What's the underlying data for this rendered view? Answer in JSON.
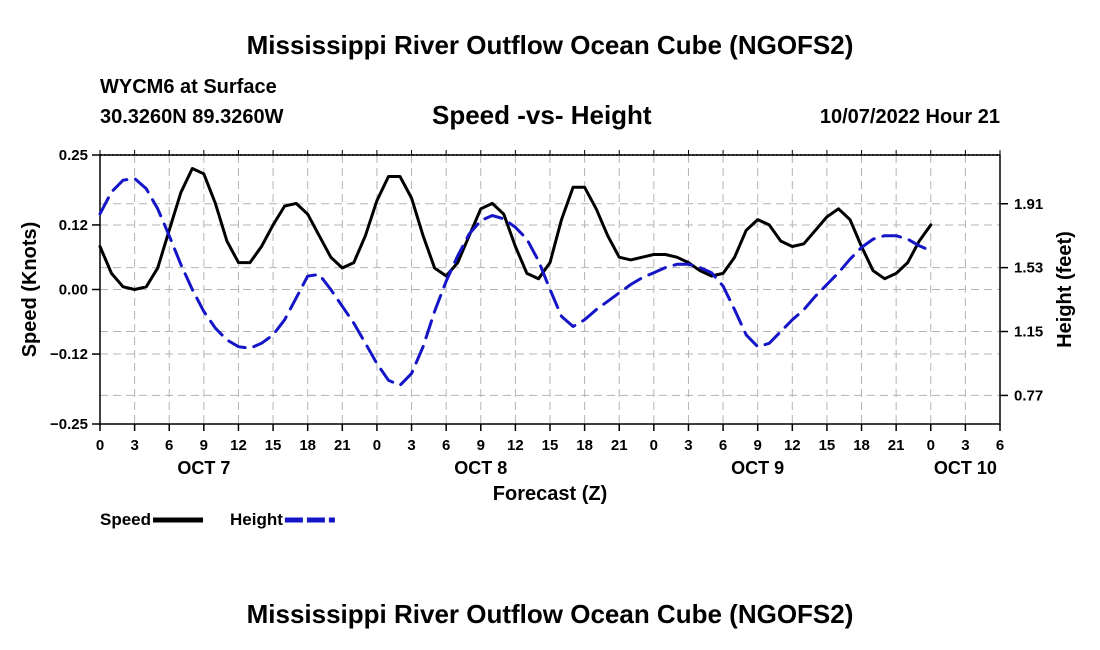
{
  "header": {
    "title": "Mississippi River Outflow Ocean Cube (NGOFS2)",
    "station": "WYCM6 at Surface",
    "coordinates": "30.3260N  89.3260W",
    "subtitle": "Speed -vs- Height",
    "datetime": "10/07/2022 Hour 21"
  },
  "footer": {
    "title": "Mississippi River Outflow Ocean Cube (NGOFS2)"
  },
  "chart_data": {
    "type": "line",
    "title": "Speed -vs- Height",
    "xlabel": "Forecast (Z)",
    "ylabel_left": "Speed (Knots)",
    "ylabel_right": "Height (feet)",
    "x_range_hours": [
      0,
      78
    ],
    "x_tick_labels": [
      "0",
      "3",
      "6",
      "9",
      "12",
      "15",
      "18",
      "21",
      "0",
      "3",
      "6",
      "9",
      "12",
      "15",
      "18",
      "21",
      "0",
      "3",
      "6",
      "9",
      "12",
      "15",
      "18",
      "21",
      "0",
      "3",
      "6"
    ],
    "date_labels": [
      {
        "label": "OCT 7",
        "hour": 9
      },
      {
        "label": "OCT 8",
        "hour": 33
      },
      {
        "label": "OCT 9",
        "hour": 57
      },
      {
        "label": "OCT 10",
        "hour": 75
      }
    ],
    "left_axis": {
      "ylim": [
        -0.25,
        0.25
      ],
      "ticks": [
        0.25,
        0.12,
        0.0,
        -0.12,
        -0.25
      ],
      "tick_labels": [
        "0.25",
        "0.12",
        "0.00",
        "−0.12",
        "−0.25"
      ]
    },
    "right_axis": {
      "ylim": [
        0.6,
        2.2
      ],
      "ticks": [
        1.91,
        1.53,
        1.15,
        0.77
      ],
      "tick_labels": [
        "1.91",
        "1.53",
        "1.15",
        "0.77"
      ]
    },
    "grid": true,
    "series": [
      {
        "name": "Speed",
        "axis": "left",
        "color": "#000000",
        "dash": "solid",
        "points": [
          [
            0,
            0.08
          ],
          [
            1,
            0.03
          ],
          [
            2,
            0.005
          ],
          [
            3,
            0
          ],
          [
            4,
            0.005
          ],
          [
            5,
            0.04
          ],
          [
            6,
            0.11
          ],
          [
            7,
            0.18
          ],
          [
            8,
            0.225
          ],
          [
            9,
            0.215
          ],
          [
            10,
            0.16
          ],
          [
            11,
            0.09
          ],
          [
            12,
            0.05
          ],
          [
            13,
            0.05
          ],
          [
            14,
            0.08
          ],
          [
            15,
            0.12
          ],
          [
            16,
            0.155
          ],
          [
            17,
            0.16
          ],
          [
            18,
            0.14
          ],
          [
            19,
            0.1
          ],
          [
            20,
            0.06
          ],
          [
            21,
            0.04
          ],
          [
            22,
            0.05
          ],
          [
            23,
            0.1
          ],
          [
            24,
            0.165
          ],
          [
            25,
            0.21
          ],
          [
            26,
            0.21
          ],
          [
            27,
            0.17
          ],
          [
            28,
            0.1
          ],
          [
            29,
            0.04
          ],
          [
            30,
            0.025
          ],
          [
            31,
            0.05
          ],
          [
            32,
            0.1
          ],
          [
            33,
            0.15
          ],
          [
            34,
            0.16
          ],
          [
            35,
            0.14
          ],
          [
            36,
            0.08
          ],
          [
            37,
            0.03
          ],
          [
            38,
            0.02
          ],
          [
            39,
            0.05
          ],
          [
            40,
            0.13
          ],
          [
            41,
            0.19
          ],
          [
            42,
            0.19
          ],
          [
            43,
            0.15
          ],
          [
            44,
            0.1
          ],
          [
            45,
            0.06
          ],
          [
            46,
            0.055
          ],
          [
            47,
            0.06
          ],
          [
            48,
            0.065
          ],
          [
            49,
            0.065
          ],
          [
            50,
            0.06
          ],
          [
            51,
            0.05
          ],
          [
            52,
            0.035
          ],
          [
            53,
            0.025
          ],
          [
            54,
            0.03
          ],
          [
            55,
            0.06
          ],
          [
            56,
            0.11
          ],
          [
            57,
            0.13
          ],
          [
            58,
            0.12
          ],
          [
            59,
            0.09
          ],
          [
            60,
            0.08
          ],
          [
            61,
            0.085
          ],
          [
            62,
            0.11
          ],
          [
            63,
            0.135
          ],
          [
            64,
            0.15
          ],
          [
            65,
            0.13
          ],
          [
            66,
            0.08
          ],
          [
            67,
            0.035
          ],
          [
            68,
            0.02
          ],
          [
            69,
            0.03
          ],
          [
            70,
            0.05
          ],
          [
            71,
            0.09
          ],
          [
            72,
            0.12
          ]
        ]
      },
      {
        "name": "Height",
        "axis": "right",
        "color": "#1515c8",
        "dash": "dashed",
        "points": [
          [
            0,
            1.85
          ],
          [
            1,
            1.98
          ],
          [
            2,
            2.05
          ],
          [
            3,
            2.06
          ],
          [
            4,
            2.0
          ],
          [
            5,
            1.88
          ],
          [
            6,
            1.72
          ],
          [
            7,
            1.55
          ],
          [
            8,
            1.4
          ],
          [
            9,
            1.27
          ],
          [
            10,
            1.17
          ],
          [
            11,
            1.1
          ],
          [
            12,
            1.06
          ],
          [
            13,
            1.05
          ],
          [
            14,
            1.08
          ],
          [
            15,
            1.13
          ],
          [
            16,
            1.22
          ],
          [
            17,
            1.35
          ],
          [
            18,
            1.48
          ],
          [
            19,
            1.49
          ],
          [
            20,
            1.4
          ],
          [
            21,
            1.3
          ],
          [
            22,
            1.2
          ],
          [
            23,
            1.08
          ],
          [
            24,
            0.96
          ],
          [
            25,
            0.86
          ],
          [
            26,
            0.83
          ],
          [
            27,
            0.9
          ],
          [
            28,
            1.06
          ],
          [
            29,
            1.27
          ],
          [
            30,
            1.45
          ],
          [
            31,
            1.6
          ],
          [
            32,
            1.73
          ],
          [
            33,
            1.81
          ],
          [
            34,
            1.84
          ],
          [
            35,
            1.82
          ],
          [
            36,
            1.77
          ],
          [
            37,
            1.7
          ],
          [
            38,
            1.57
          ],
          [
            39,
            1.4
          ],
          [
            40,
            1.24
          ],
          [
            41,
            1.18
          ],
          [
            42,
            1.22
          ],
          [
            43,
            1.28
          ],
          [
            44,
            1.33
          ],
          [
            45,
            1.38
          ],
          [
            46,
            1.43
          ],
          [
            47,
            1.47
          ],
          [
            48,
            1.5
          ],
          [
            49,
            1.53
          ],
          [
            50,
            1.55
          ],
          [
            51,
            1.55
          ],
          [
            52,
            1.53
          ],
          [
            53,
            1.5
          ],
          [
            54,
            1.42
          ],
          [
            55,
            1.28
          ],
          [
            56,
            1.13
          ],
          [
            57,
            1.06
          ],
          [
            58,
            1.08
          ],
          [
            59,
            1.15
          ],
          [
            60,
            1.22
          ],
          [
            61,
            1.28
          ],
          [
            62,
            1.36
          ],
          [
            63,
            1.43
          ],
          [
            64,
            1.5
          ],
          [
            65,
            1.58
          ],
          [
            66,
            1.65
          ],
          [
            67,
            1.7
          ],
          [
            68,
            1.72
          ],
          [
            69,
            1.72
          ],
          [
            70,
            1.7
          ],
          [
            71,
            1.66
          ],
          [
            72,
            1.63
          ]
        ]
      }
    ],
    "legend": [
      {
        "label": "Speed",
        "color": "#000000",
        "dash": "solid"
      },
      {
        "label": "Height",
        "color": "#1515c8",
        "dash": "dashed"
      }
    ]
  }
}
